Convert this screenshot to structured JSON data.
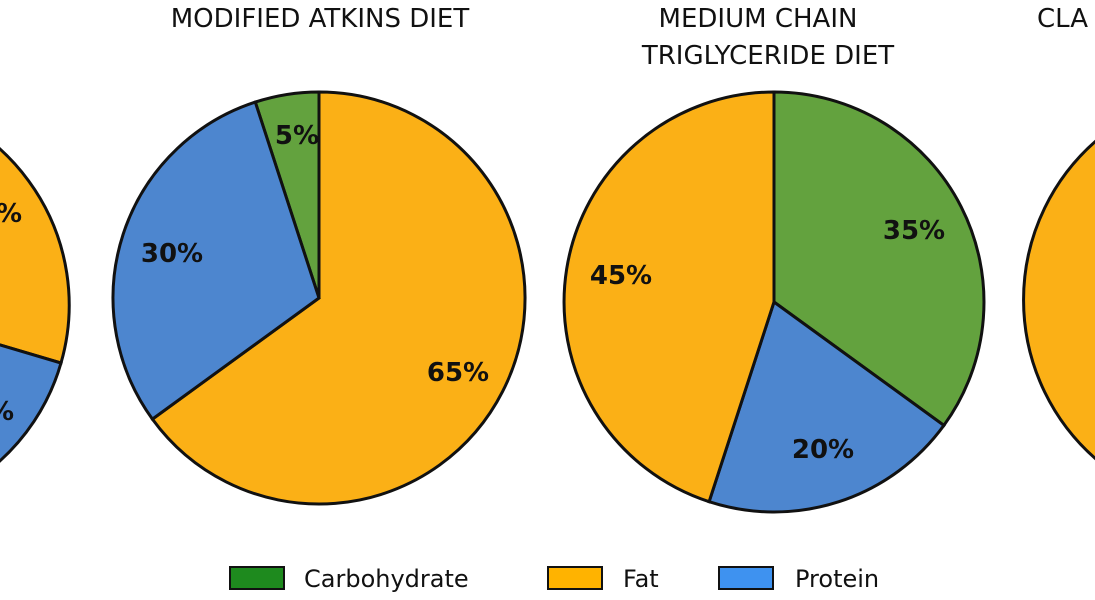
{
  "chart_data": [
    {
      "type": "pie",
      "title": [
        "%"
      ],
      "categories": [
        "Carbohydrate",
        "Fat",
        "Protein"
      ],
      "values": [
        null,
        null,
        null
      ],
      "labels": [
        "",
        "%",
        "%"
      ],
      "partial": "left-clipped"
    },
    {
      "type": "pie",
      "title": [
        "MODIFIED ATKINS DIET"
      ],
      "categories": [
        "Carbohydrate",
        "Fat",
        "Protein"
      ],
      "values": [
        5,
        65,
        30
      ],
      "labels": [
        "5%",
        "65%",
        "30%"
      ]
    },
    {
      "type": "pie",
      "title": [
        "MEDIUM CHAIN",
        "TRIGLYCERIDE DIET"
      ],
      "categories": [
        "Carbohydrate",
        "Fat",
        "Protein"
      ],
      "values": [
        35,
        45,
        20
      ],
      "labels": [
        "35%",
        "45%",
        "20%"
      ]
    },
    {
      "type": "pie",
      "title": [
        "CLA"
      ],
      "categories": [
        "Carbohydrate",
        "Fat",
        "Protein"
      ],
      "values": [
        null,
        null,
        null
      ],
      "labels": [
        "",
        "",
        ""
      ],
      "partial": "right-clipped"
    }
  ],
  "legend": {
    "placement": "bottom-center",
    "items": [
      {
        "label": "Carbohydrate",
        "color": "#1e8a1e"
      },
      {
        "label": "Fat",
        "color": "#ffb300"
      },
      {
        "label": "Protein",
        "color": "#3e92f0"
      }
    ]
  },
  "colors": {
    "carbohydrate": "#63a23e",
    "fat": "#fbb016",
    "protein": "#4d86cf",
    "outline": "#111111"
  }
}
